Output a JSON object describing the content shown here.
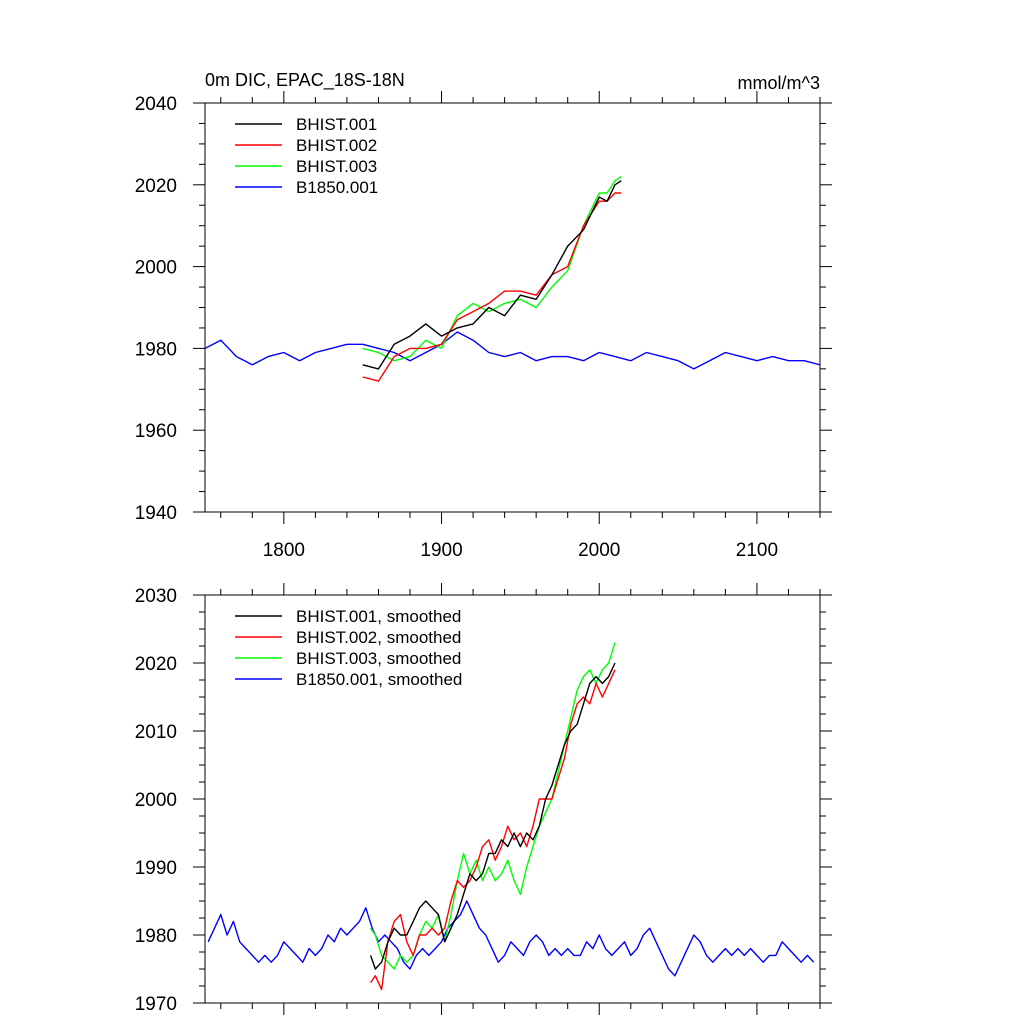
{
  "chart_data": [
    {
      "type": "line",
      "title": "0m DIC, EPAC_18S-18N",
      "units": "mmol/m^3",
      "xlim": [
        1750,
        2140
      ],
      "ylim": [
        1940,
        2040
      ],
      "x_ticks": [
        1800,
        1900,
        2000,
        2100
      ],
      "y_ticks": [
        1940,
        1960,
        1980,
        2000,
        2020,
        2040
      ],
      "legend_position": "top-left",
      "grid": false,
      "series": [
        {
          "name": "BHIST.001",
          "color": "#000000",
          "x": [
            1850,
            1860,
            1870,
            1880,
            1890,
            1900,
            1910,
            1920,
            1930,
            1940,
            1950,
            1960,
            1970,
            1980,
            1990,
            2000,
            2005,
            2010,
            2014
          ],
          "y": [
            1976,
            1975,
            1981,
            1983,
            1986,
            1983,
            1985,
            1986,
            1990,
            1988,
            1993,
            1992,
            1998,
            2005,
            2009,
            2017,
            2016,
            2020,
            2021
          ]
        },
        {
          "name": "BHIST.002",
          "color": "#ff0000",
          "x": [
            1850,
            1860,
            1870,
            1880,
            1890,
            1900,
            1910,
            1920,
            1930,
            1940,
            1950,
            1960,
            1970,
            1980,
            1990,
            2000,
            2005,
            2010,
            2014
          ],
          "y": [
            1973,
            1972,
            1978,
            1980,
            1980,
            1981,
            1987,
            1989,
            1991,
            1994,
            1994,
            1993,
            1998,
            2000,
            2010,
            2016,
            2016,
            2018,
            2018
          ]
        },
        {
          "name": "BHIST.003",
          "color": "#00ff00",
          "x": [
            1850,
            1860,
            1870,
            1880,
            1890,
            1900,
            1910,
            1920,
            1930,
            1940,
            1950,
            1960,
            1970,
            1980,
            1990,
            2000,
            2005,
            2010,
            2014
          ],
          "y": [
            1980,
            1979,
            1977,
            1978,
            1982,
            1980,
            1988,
            1991,
            1989,
            1991,
            1992,
            1990,
            1995,
            1999,
            2010,
            2018,
            2018,
            2021,
            2022
          ]
        },
        {
          "name": "B1850.001",
          "color": "#0000ff",
          "x": [
            1750,
            1760,
            1770,
            1780,
            1790,
            1800,
            1810,
            1820,
            1830,
            1840,
            1850,
            1860,
            1870,
            1880,
            1890,
            1900,
            1910,
            1920,
            1930,
            1940,
            1950,
            1960,
            1970,
            1980,
            1990,
            2000,
            2010,
            2020,
            2030,
            2040,
            2050,
            2060,
            2070,
            2080,
            2090,
            2100,
            2110,
            2120,
            2130,
            2140
          ],
          "y": [
            1980,
            1982,
            1978,
            1976,
            1978,
            1979,
            1977,
            1979,
            1980,
            1981,
            1981,
            1980,
            1979,
            1977,
            1979,
            1981,
            1984,
            1982,
            1979,
            1978,
            1979,
            1977,
            1978,
            1978,
            1977,
            1979,
            1978,
            1977,
            1979,
            1978,
            1977,
            1975,
            1977,
            1979,
            1978,
            1977,
            1978,
            1977,
            1977,
            1976
          ]
        }
      ]
    },
    {
      "type": "line",
      "title": "",
      "xlim": [
        1750,
        2140
      ],
      "ylim": [
        1970,
        2030
      ],
      "x_ticks": [
        1800,
        1900,
        2000,
        2100
      ],
      "y_ticks": [
        1970,
        1980,
        1990,
        2000,
        2010,
        2020,
        2030
      ],
      "legend_position": "top-left",
      "grid": false,
      "series": [
        {
          "name": "BHIST.001, smoothed",
          "color": "#000000",
          "x": [
            1855,
            1858,
            1862,
            1866,
            1870,
            1874,
            1878,
            1882,
            1886,
            1890,
            1894,
            1898,
            1902,
            1906,
            1910,
            1914,
            1918,
            1922,
            1926,
            1930,
            1934,
            1938,
            1942,
            1946,
            1950,
            1954,
            1958,
            1962,
            1966,
            1970,
            1974,
            1978,
            1982,
            1986,
            1990,
            1994,
            1998,
            2002,
            2006,
            2010
          ],
          "y": [
            1977,
            1975,
            1976,
            1979,
            1981,
            1980,
            1980,
            1982,
            1984,
            1985,
            1984,
            1983,
            1979,
            1981,
            1983,
            1986,
            1989,
            1988,
            1989,
            1992,
            1992,
            1994,
            1993,
            1995,
            1993,
            1995,
            1994,
            1996,
            2000,
            2002,
            2005,
            2008,
            2010,
            2011,
            2014,
            2017,
            2018,
            2017,
            2018,
            2020
          ]
        },
        {
          "name": "BHIST.002, smoothed",
          "color": "#ff0000",
          "x": [
            1855,
            1858,
            1862,
            1866,
            1870,
            1874,
            1878,
            1882,
            1886,
            1890,
            1894,
            1898,
            1902,
            1906,
            1910,
            1914,
            1918,
            1922,
            1926,
            1930,
            1934,
            1938,
            1942,
            1946,
            1950,
            1954,
            1958,
            1962,
            1966,
            1970,
            1974,
            1978,
            1982,
            1986,
            1990,
            1994,
            1998,
            2002,
            2006,
            2010
          ],
          "y": [
            1973,
            1974,
            1972,
            1979,
            1982,
            1983,
            1979,
            1977,
            1980,
            1980,
            1981,
            1980,
            1981,
            1985,
            1988,
            1987,
            1988,
            1990,
            1993,
            1994,
            1991,
            1993,
            1996,
            1994,
            1995,
            1993,
            1996,
            2000,
            2000,
            2000,
            2003,
            2006,
            2011,
            2014,
            2015,
            2014,
            2017,
            2015,
            2017,
            2019
          ]
        },
        {
          "name": "BHIST.003, smoothed",
          "color": "#00ff00",
          "x": [
            1855,
            1858,
            1862,
            1866,
            1870,
            1874,
            1878,
            1882,
            1886,
            1890,
            1894,
            1898,
            1902,
            1906,
            1910,
            1914,
            1918,
            1922,
            1926,
            1930,
            1934,
            1938,
            1942,
            1946,
            1950,
            1954,
            1958,
            1962,
            1966,
            1970,
            1974,
            1978,
            1982,
            1986,
            1990,
            1994,
            1998,
            2002,
            2006,
            2010
          ],
          "y": [
            1981,
            1980,
            1977,
            1976,
            1975,
            1977,
            1976,
            1977,
            1980,
            1982,
            1981,
            1983,
            1979,
            1983,
            1988,
            1992,
            1989,
            1991,
            1988,
            1990,
            1988,
            1989,
            1991,
            1988,
            1986,
            1990,
            1993,
            1996,
            1998,
            2000,
            2004,
            2008,
            2012,
            2016,
            2018,
            2019,
            2017,
            2019,
            2020,
            2023
          ]
        },
        {
          "name": "B1850.001, smoothed",
          "color": "#0000ff",
          "x": [
            1752,
            1756,
            1760,
            1764,
            1768,
            1772,
            1776,
            1780,
            1784,
            1788,
            1792,
            1796,
            1800,
            1804,
            1808,
            1812,
            1816,
            1820,
            1824,
            1828,
            1832,
            1836,
            1840,
            1844,
            1848,
            1852,
            1856,
            1860,
            1864,
            1868,
            1872,
            1876,
            1880,
            1884,
            1888,
            1892,
            1896,
            1900,
            1904,
            1908,
            1912,
            1916,
            1920,
            1924,
            1928,
            1932,
            1936,
            1940,
            1944,
            1948,
            1952,
            1956,
            1960,
            1964,
            1968,
            1972,
            1976,
            1980,
            1984,
            1988,
            1992,
            1996,
            2000,
            2004,
            2008,
            2012,
            2016,
            2020,
            2024,
            2028,
            2032,
            2036,
            2040,
            2044,
            2048,
            2052,
            2056,
            2060,
            2064,
            2068,
            2072,
            2076,
            2080,
            2084,
            2088,
            2092,
            2096,
            2100,
            2104,
            2108,
            2112,
            2116,
            2120,
            2124,
            2128,
            2132,
            2136
          ],
          "y": [
            1979,
            1981,
            1983,
            1980,
            1982,
            1979,
            1978,
            1977,
            1976,
            1977,
            1976,
            1977,
            1979,
            1978,
            1977,
            1976,
            1978,
            1977,
            1978,
            1980,
            1979,
            1981,
            1980,
            1981,
            1982,
            1984,
            1981,
            1979,
            1980,
            1979,
            1978,
            1976,
            1975,
            1977,
            1978,
            1977,
            1978,
            1979,
            1981,
            1982,
            1983,
            1985,
            1983,
            1981,
            1980,
            1978,
            1976,
            1977,
            1979,
            1978,
            1977,
            1979,
            1980,
            1979,
            1977,
            1978,
            1977,
            1978,
            1977,
            1977,
            1979,
            1978,
            1980,
            1978,
            1977,
            1978,
            1979,
            1977,
            1978,
            1980,
            1981,
            1979,
            1977,
            1975,
            1974,
            1976,
            1978,
            1980,
            1979,
            1977,
            1976,
            1977,
            1978,
            1977,
            1978,
            1977,
            1978,
            1977,
            1976,
            1977,
            1977,
            1979,
            1978,
            1977,
            1976,
            1977,
            1976
          ]
        }
      ]
    }
  ]
}
